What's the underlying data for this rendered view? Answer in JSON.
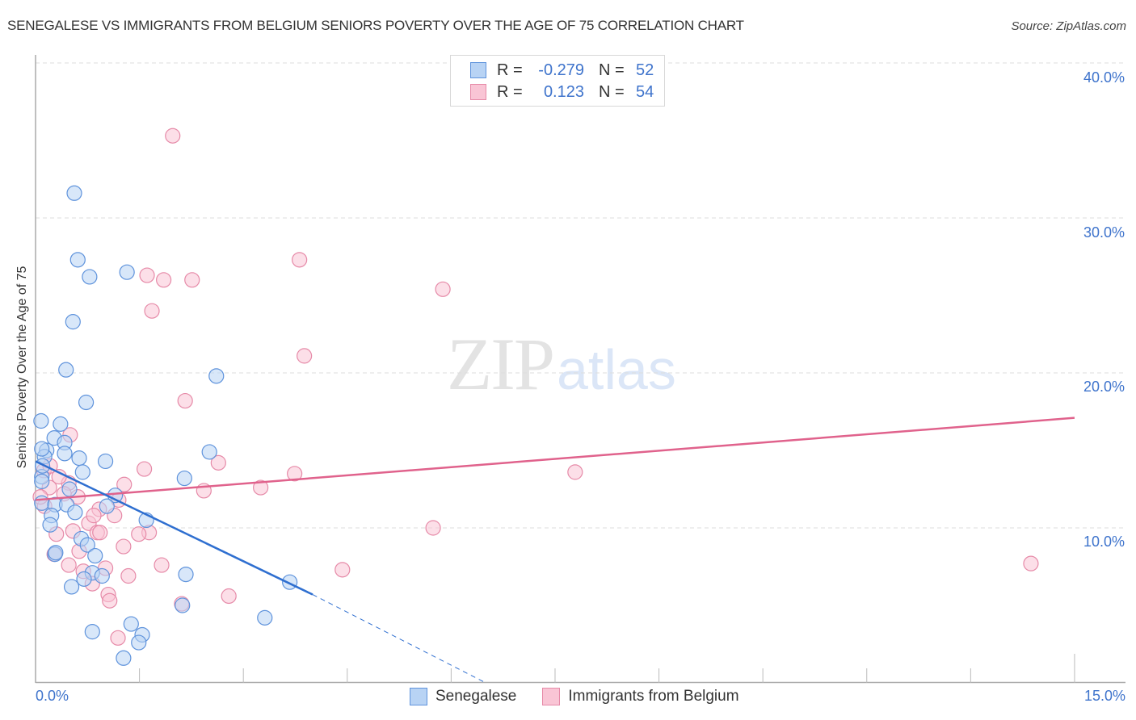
{
  "header": {
    "title": "SENEGALESE VS IMMIGRANTS FROM BELGIUM SENIORS POVERTY OVER THE AGE OF 75 CORRELATION CHART",
    "source": "Source: ZipAtlas.com"
  },
  "watermark": {
    "zip": "ZIP",
    "atlas": "atlas"
  },
  "colors": {
    "senegalese_fill": "#b8d3f4",
    "senegalese_stroke": "#5f93dc",
    "senegalese_line": "#2f6fd0",
    "belgium_fill": "#f9c5d5",
    "belgium_stroke": "#e68aa8",
    "belgium_line": "#e0628c",
    "axis_label": "#3f74cc",
    "grid": "#dddddd"
  },
  "legend": {
    "rows": [
      {
        "series": "Senegalese",
        "r_label": "R =",
        "r_value": "-0.279",
        "n_label": "N =",
        "n_value": "52"
      },
      {
        "series": "Immigrants from Belgium",
        "r_label": "R =",
        "r_value": "0.123",
        "n_label": "N =",
        "n_value": "54"
      }
    ]
  },
  "bottom_legend": {
    "items": [
      {
        "label": "Senegalese"
      },
      {
        "label": "Immigrants from Belgium"
      }
    ]
  },
  "axes": {
    "y_label": "Seniors Poverty Over the Age of 75",
    "y_ticks": [
      "40.0%",
      "30.0%",
      "20.0%",
      "10.0%"
    ],
    "x_min_label": "0.0%",
    "x_max_label": "15.0%"
  },
  "chart_data": {
    "type": "scatter",
    "title": "SENEGALESE VS IMMIGRANTS FROM BELGIUM SENIORS POVERTY OVER THE AGE OF 75 CORRELATION CHART",
    "xlabel": "",
    "ylabel": "Seniors Poverty Over the Age of 75",
    "xlim": [
      0,
      15.7
    ],
    "ylim": [
      0,
      40
    ],
    "x_ticks": [
      0,
      1.5,
      3,
      4.5,
      6,
      7.5,
      9,
      10.5,
      12,
      13.5,
      15
    ],
    "y_ticks": [
      10,
      20,
      30,
      40
    ],
    "grid": "horizontal dashed",
    "legend_position": "top-center",
    "series": [
      {
        "name": "Senegalese",
        "r": -0.279,
        "n": 52,
        "trendline": {
          "x": [
            0,
            4.0
          ],
          "y": [
            14.3,
            5.7
          ],
          "dashed_extension_to": [
            6.5,
            0
          ]
        },
        "points": [
          [
            0.56,
            31.6
          ],
          [
            0.61,
            27.3
          ],
          [
            0.78,
            26.2
          ],
          [
            1.32,
            26.5
          ],
          [
            0.54,
            23.3
          ],
          [
            0.44,
            20.2
          ],
          [
            2.61,
            19.8
          ],
          [
            0.73,
            18.1
          ],
          [
            0.08,
            16.9
          ],
          [
            0.36,
            16.7
          ],
          [
            0.27,
            15.8
          ],
          [
            0.42,
            15.5
          ],
          [
            0.16,
            15.0
          ],
          [
            0.42,
            14.8
          ],
          [
            0.13,
            14.6
          ],
          [
            0.63,
            14.5
          ],
          [
            1.01,
            14.3
          ],
          [
            2.51,
            14.9
          ],
          [
            0.68,
            13.6
          ],
          [
            0.09,
            13.3
          ],
          [
            2.15,
            13.2
          ],
          [
            0.49,
            12.5
          ],
          [
            1.15,
            12.1
          ],
          [
            0.09,
            11.6
          ],
          [
            0.28,
            11.5
          ],
          [
            0.45,
            11.5
          ],
          [
            0.57,
            11.0
          ],
          [
            1.03,
            11.4
          ],
          [
            1.6,
            10.5
          ],
          [
            0.23,
            10.8
          ],
          [
            0.21,
            10.2
          ],
          [
            0.66,
            9.3
          ],
          [
            0.75,
            8.9
          ],
          [
            0.28,
            8.3
          ],
          [
            0.86,
            8.2
          ],
          [
            0.82,
            7.1
          ],
          [
            0.96,
            6.9
          ],
          [
            2.17,
            7.0
          ],
          [
            0.7,
            6.7
          ],
          [
            0.52,
            6.2
          ],
          [
            3.67,
            6.5
          ],
          [
            2.12,
            5.0
          ],
          [
            3.31,
            4.2
          ],
          [
            1.38,
            3.8
          ],
          [
            0.82,
            3.3
          ],
          [
            1.54,
            3.1
          ],
          [
            1.49,
            2.6
          ],
          [
            1.27,
            1.6
          ],
          [
            0.1,
            14.0
          ],
          [
            0.09,
            13.0
          ],
          [
            0.29,
            8.4
          ],
          [
            0.09,
            15.1
          ]
        ]
      },
      {
        "name": "Immigrants from Belgium",
        "r": 0.123,
        "n": 54,
        "trendline": {
          "x": [
            0,
            15.0
          ],
          "y": [
            11.8,
            17.1
          ]
        },
        "points": [
          [
            1.98,
            35.3
          ],
          [
            3.81,
            27.3
          ],
          [
            1.61,
            26.3
          ],
          [
            5.88,
            25.4
          ],
          [
            1.85,
            26.0
          ],
          [
            2.26,
            26.0
          ],
          [
            1.68,
            24.0
          ],
          [
            3.88,
            21.1
          ],
          [
            2.16,
            18.2
          ],
          [
            0.5,
            16.0
          ],
          [
            0.12,
            13.7
          ],
          [
            1.57,
            13.8
          ],
          [
            2.64,
            14.2
          ],
          [
            3.74,
            13.5
          ],
          [
            7.79,
            13.6
          ],
          [
            3.25,
            12.6
          ],
          [
            2.43,
            12.4
          ],
          [
            0.2,
            12.6
          ],
          [
            0.48,
            12.9
          ],
          [
            1.28,
            12.8
          ],
          [
            0.61,
            12.0
          ],
          [
            0.41,
            12.2
          ],
          [
            1.2,
            11.8
          ],
          [
            0.13,
            11.4
          ],
          [
            0.92,
            11.2
          ],
          [
            1.14,
            10.8
          ],
          [
            0.77,
            10.3
          ],
          [
            0.3,
            9.6
          ],
          [
            0.54,
            9.8
          ],
          [
            0.89,
            9.7
          ],
          [
            1.64,
            9.7
          ],
          [
            1.49,
            9.6
          ],
          [
            0.27,
            8.3
          ],
          [
            0.63,
            8.5
          ],
          [
            1.27,
            8.8
          ],
          [
            5.74,
            10.0
          ],
          [
            4.43,
            7.3
          ],
          [
            1.82,
            7.6
          ],
          [
            14.37,
            7.7
          ],
          [
            0.48,
            7.6
          ],
          [
            1.01,
            7.4
          ],
          [
            1.34,
            6.9
          ],
          [
            0.69,
            7.2
          ],
          [
            0.82,
            6.4
          ],
          [
            1.05,
            5.7
          ],
          [
            2.79,
            5.6
          ],
          [
            1.07,
            5.3
          ],
          [
            2.11,
            5.1
          ],
          [
            1.19,
            2.9
          ],
          [
            0.07,
            12.0
          ],
          [
            0.21,
            14.0
          ],
          [
            0.84,
            10.8
          ],
          [
            0.34,
            13.3
          ],
          [
            0.93,
            9.7
          ]
        ]
      }
    ]
  }
}
